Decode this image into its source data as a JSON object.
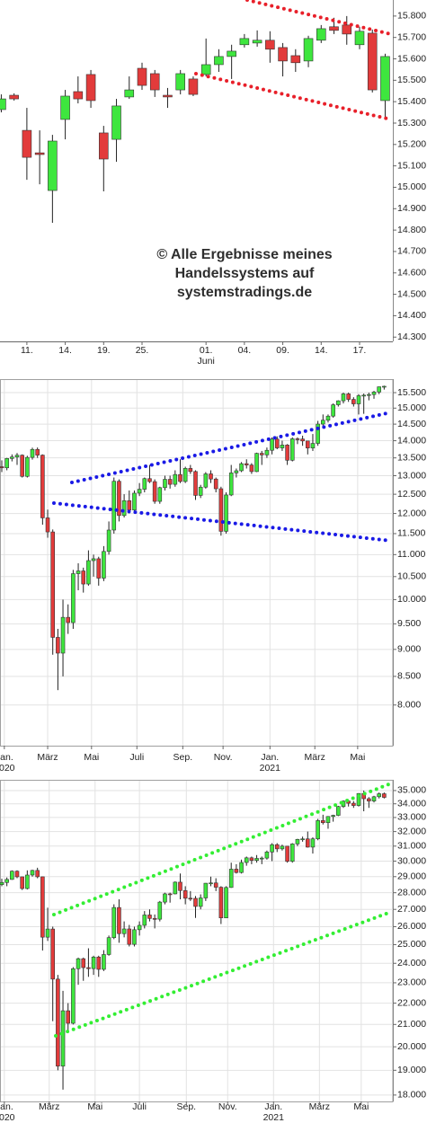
{
  "chart_data": [
    {
      "type": "candlestick",
      "log": false,
      "grid": false,
      "up_color": "#3ee63e",
      "down_color": "#e23b3b",
      "watermark": [
        "© Alle Ergebnisse meines",
        "Handelssystems auf",
        "systemstradings.de"
      ],
      "xlim": [
        -0.1,
        30.6
      ],
      "ylim": [
        14280,
        15875
      ],
      "xticks": [
        {
          "value": 2,
          "label": "11."
        },
        {
          "value": 5,
          "label": "14."
        },
        {
          "value": 8,
          "label": "19."
        },
        {
          "value": 11,
          "label": "25."
        },
        {
          "value": 16,
          "label": "01.",
          "sublabel": "Juni"
        },
        {
          "value": 19,
          "label": "04."
        },
        {
          "value": 22,
          "label": "09."
        },
        {
          "value": 25,
          "label": "14."
        },
        {
          "value": 28,
          "label": "17."
        }
      ],
      "yticks": [
        {
          "value": 14300,
          "label": "14.300"
        },
        {
          "value": 14400,
          "label": "14.400"
        },
        {
          "value": 14500,
          "label": "14.500"
        },
        {
          "value": 14600,
          "label": "14.600"
        },
        {
          "value": 14700,
          "label": "14.700"
        },
        {
          "value": 14800,
          "label": "14.800"
        },
        {
          "value": 14900,
          "label": "14.900"
        },
        {
          "value": 15000,
          "label": "15.000"
        },
        {
          "value": 15100,
          "label": "15.100"
        },
        {
          "value": 15200,
          "label": "15.200"
        },
        {
          "value": 15300,
          "label": "15.300"
        },
        {
          "value": 15400,
          "label": "15.400"
        },
        {
          "value": 15500,
          "label": "15.500"
        },
        {
          "value": 15600,
          "label": "15.600"
        },
        {
          "value": 15700,
          "label": "15.700"
        },
        {
          "value": 15800,
          "label": "15.800"
        }
      ],
      "open": [
        15363,
        15430,
        15266,
        15161,
        14985,
        15317,
        15447,
        15527,
        15254,
        15224,
        15422,
        15556,
        15531,
        15430,
        15455,
        15506,
        15527,
        15573,
        15611,
        15666,
        15674,
        15687,
        15653,
        15615,
        15590,
        15687,
        15750,
        15758,
        15666,
        15720,
        15405
      ],
      "high": [
        15434,
        15439,
        15371,
        15266,
        15245,
        15455,
        15518,
        15548,
        15287,
        15413,
        15518,
        15582,
        15548,
        15464,
        15548,
        15518,
        15695,
        15645,
        15666,
        15716,
        15733,
        15729,
        15674,
        15645,
        15708,
        15758,
        15792,
        15800,
        15750,
        15737,
        15624
      ],
      "low": [
        15350,
        15405,
        15035,
        15014,
        14834,
        15224,
        15392,
        15371,
        14981,
        15119,
        15413,
        15455,
        15422,
        15371,
        15434,
        15426,
        15518,
        15539,
        15506,
        15653,
        15657,
        15582,
        15518,
        15539,
        15561,
        15674,
        15716,
        15666,
        15645,
        15443,
        15329
      ],
      "close": [
        15413,
        15413,
        15140,
        15153,
        15216,
        15426,
        15413,
        15405,
        15132,
        15380,
        15455,
        15476,
        15455,
        15422,
        15531,
        15434,
        15573,
        15611,
        15636,
        15695,
        15687,
        15645,
        15590,
        15582,
        15695,
        15741,
        15733,
        15716,
        15729,
        15455,
        15611
      ]
    },
    {
      "type": "candlestick",
      "log": true,
      "grid": true,
      "up_color": "#3ee63e",
      "down_color": "#e23b3b",
      "xlim": [
        -0.35,
        76.7
      ],
      "ylim": [
        7340,
        15950
      ],
      "xticks": [
        {
          "value": 0.5,
          "label": "Jan.",
          "sublabel": "2020"
        },
        {
          "value": 9,
          "label": "März"
        },
        {
          "value": 17.6,
          "label": "Mai"
        },
        {
          "value": 26.5,
          "label": "Juli"
        },
        {
          "value": 35.5,
          "label": "Sep."
        },
        {
          "value": 43.4,
          "label": "Nov."
        },
        {
          "value": 52.6,
          "label": "Jan.",
          "sublabel": "2021"
        },
        {
          "value": 61.4,
          "label": "März"
        },
        {
          "value": 69.8,
          "label": "Mai"
        }
      ],
      "yticks": [
        {
          "value": 8000,
          "label": "8.000"
        },
        {
          "value": 8500,
          "label": "8.500"
        },
        {
          "value": 9000,
          "label": "9.000"
        },
        {
          "value": 9500,
          "label": "9.500"
        },
        {
          "value": 10000,
          "label": "10.000"
        },
        {
          "value": 10500,
          "label": "10.500"
        },
        {
          "value": 11000,
          "label": "11.000"
        },
        {
          "value": 11500,
          "label": "11.500"
        },
        {
          "value": 12000,
          "label": "12.000"
        },
        {
          "value": 12500,
          "label": "12.500"
        },
        {
          "value": 13000,
          "label": "13.000"
        },
        {
          "value": 13500,
          "label": "13.500"
        },
        {
          "value": 14000,
          "label": "14.000"
        },
        {
          "value": 14500,
          "label": "14.500"
        },
        {
          "value": 15000,
          "label": "15.000"
        },
        {
          "value": 15500,
          "label": "15.500"
        }
      ],
      "open": [
        13250,
        13219,
        13483,
        13526,
        13577,
        12982,
        13514,
        13744,
        13579,
        11890,
        11541,
        9232,
        8929,
        9632,
        9525,
        10565,
        10626,
        10336,
        10861,
        10904,
        10465,
        11074,
        11587,
        12848,
        11949,
        12331,
        12089,
        12528,
        12633,
        12920,
        12838,
        12313,
        12675,
        12901,
        12765,
        13033,
        12842,
        13203,
        13116,
        12469,
        12689,
        13051,
        12909,
        12646,
        11556,
        12480,
        13077,
        13137,
        13336,
        13298,
        13114,
        13631,
        13587,
        13719,
        14049,
        13788,
        13873,
        13433,
        14057,
        14050,
        13993,
        13786,
        13920,
        14502,
        14621,
        14748,
        15107,
        15234,
        15460,
        15280,
        15136,
        15400,
        15417,
        15438,
        15520,
        15693
      ],
      "high": [
        13430,
        13500,
        13600,
        13640,
        13600,
        13560,
        13795,
        13800,
        13600,
        12100,
        11600,
        9400,
        10000,
        9900,
        10650,
        10800,
        10700,
        11100,
        11000,
        10950,
        11200,
        11800,
        12950,
        12900,
        12500,
        12600,
        12600,
        12800,
        12950,
        13300,
        12900,
        12700,
        13000,
        13000,
        13150,
        13460,
        13250,
        13300,
        13150,
        12750,
        13100,
        13150,
        12950,
        12700,
        12550,
        13300,
        13200,
        13380,
        13460,
        13350,
        13650,
        13700,
        13800,
        14100,
        14130,
        14000,
        13900,
        14100,
        14100,
        14150,
        14000,
        14200,
        14600,
        14800,
        14800,
        15150,
        15250,
        15500,
        15500,
        15350,
        15450,
        15470,
        15500,
        15560,
        15700,
        15730
      ],
      "low": [
        13100,
        13150,
        13400,
        13300,
        12950,
        12950,
        13450,
        13500,
        11720,
        11400,
        8900,
        8256,
        8500,
        9300,
        9400,
        10200,
        10150,
        10300,
        10500,
        10300,
        10400,
        11000,
        11500,
        11800,
        11900,
        12000,
        12000,
        12450,
        12550,
        12800,
        12250,
        12250,
        12600,
        12650,
        12700,
        12800,
        12800,
        13050,
        12350,
        12400,
        12650,
        12800,
        12550,
        11450,
        11500,
        12450,
        12950,
        13100,
        13200,
        13050,
        13100,
        13300,
        13500,
        13600,
        13750,
        13700,
        13300,
        13400,
        13900,
        13850,
        13600,
        13700,
        13850,
        14450,
        14550,
        14700,
        15050,
        15150,
        15200,
        15050,
        14800,
        14820,
        15250,
        15300,
        15450,
        15600
      ],
      "close": [
        13219,
        13483,
        13526,
        13577,
        12982,
        13514,
        13744,
        13579,
        11890,
        11541,
        9232,
        8929,
        9632,
        9525,
        10565,
        10626,
        10336,
        10861,
        10904,
        10465,
        11074,
        11587,
        12848,
        11949,
        12331,
        12089,
        12528,
        12633,
        12920,
        12838,
        12313,
        12675,
        12901,
        12765,
        13033,
        12842,
        13203,
        13116,
        12469,
        12689,
        13051,
        12909,
        12646,
        11556,
        12480,
        13077,
        13137,
        13336,
        13298,
        13114,
        13631,
        13587,
        13719,
        14049,
        13788,
        13873,
        13433,
        14057,
        14050,
        13993,
        13786,
        13920,
        14502,
        14621,
        14748,
        15107,
        15234,
        15460,
        15280,
        15136,
        15400,
        15417,
        15438,
        15520,
        15693,
        15710
      ]
    },
    {
      "type": "candlestick",
      "log": true,
      "grid": true,
      "up_color": "#3ee63e",
      "down_color": "#e23b3b",
      "xlim": [
        -0.35,
        76.7
      ],
      "ylim": [
        17750,
        35830
      ],
      "xticks": [
        {
          "value": 0.5,
          "label": "Jan.",
          "sublabel": "2020"
        },
        {
          "value": 9.3,
          "label": "März"
        },
        {
          "value": 18.3,
          "label": "Mai"
        },
        {
          "value": 27,
          "label": "Juli"
        },
        {
          "value": 36.2,
          "label": "Sep."
        },
        {
          "value": 44.3,
          "label": "Nov."
        },
        {
          "value": 53.3,
          "label": "Jan.",
          "sublabel": "2021"
        },
        {
          "value": 62.3,
          "label": "März"
        },
        {
          "value": 70.5,
          "label": "Mai"
        }
      ],
      "yticks": [
        {
          "value": 18000,
          "label": "18.000"
        },
        {
          "value": 19000,
          "label": "19.000"
        },
        {
          "value": 20000,
          "label": "20.000"
        },
        {
          "value": 21000,
          "label": "21.000"
        },
        {
          "value": 22000,
          "label": "22.000"
        },
        {
          "value": 23000,
          "label": "23.000"
        },
        {
          "value": 24000,
          "label": "24.000"
        },
        {
          "value": 25000,
          "label": "25.000"
        },
        {
          "value": 26000,
          "label": "26.000"
        },
        {
          "value": 27000,
          "label": "27.000"
        },
        {
          "value": 28000,
          "label": "28.000"
        },
        {
          "value": 29000,
          "label": "29.000"
        },
        {
          "value": 30000,
          "label": "30.000"
        },
        {
          "value": 31000,
          "label": "31.000"
        },
        {
          "value": 32000,
          "label": "32.000"
        },
        {
          "value": 33000,
          "label": "33.000"
        },
        {
          "value": 34000,
          "label": "34.000"
        },
        {
          "value": 35000,
          "label": "35.000"
        }
      ],
      "open": [
        28500,
        28634,
        28824,
        29348,
        28990,
        28256,
        29103,
        29398,
        28992,
        25409,
        25865,
        23186,
        19174,
        21637,
        21053,
        23719,
        24242,
        23775,
        23724,
        24331,
        23685,
        24465,
        25383,
        27111,
        25606,
        25871,
        25016,
        25827,
        26075,
        26672,
        26470,
        26428,
        27433,
        27931,
        27930,
        28654,
        28133,
        27666,
        27657,
        27174,
        27683,
        28587,
        28606,
        28336,
        26502,
        28323,
        29480,
        29263,
        29910,
        30218,
        30046,
        30179,
        30200,
        30606,
        31098,
        30814,
        30997,
        29983,
        31148,
        31458,
        31494,
        30932,
        31496,
        32779,
        32628,
        33073,
        33153,
        33800,
        34200,
        34043,
        33875,
        34778,
        34382,
        34208,
        34529,
        34756
      ],
      "high": [
        28870,
        28950,
        29400,
        29400,
        29000,
        29400,
        29440,
        29570,
        29000,
        27100,
        26000,
        23400,
        22600,
        22000,
        23800,
        24300,
        24300,
        24800,
        24400,
        24400,
        24700,
        25500,
        27300,
        27600,
        26300,
        26100,
        26000,
        26300,
        26900,
        27000,
        26700,
        27500,
        28000,
        28000,
        28700,
        29200,
        28400,
        28100,
        27800,
        27900,
        28600,
        29000,
        28900,
        28400,
        28400,
        29900,
        29800,
        30100,
        30300,
        30300,
        30400,
        30300,
        30700,
        31200,
        31200,
        31100,
        31000,
        31200,
        31500,
        31650,
        32000,
        31600,
        32900,
        33200,
        33100,
        33200,
        33850,
        34260,
        34300,
        34200,
        34800,
        35000,
        34500,
        34600,
        34850,
        34850
      ],
      "low": [
        28400,
        28400,
        28800,
        28900,
        28170,
        28200,
        29000,
        28900,
        24680,
        25200,
        21150,
        19000,
        18214,
        20700,
        21000,
        22900,
        23100,
        23300,
        23400,
        23300,
        23600,
        24400,
        25300,
        25100,
        25400,
        24900,
        24900,
        25500,
        25900,
        26300,
        25900,
        26300,
        27300,
        27400,
        27900,
        27600,
        27300,
        27500,
        26500,
        27000,
        27500,
        28400,
        28100,
        26150,
        26500,
        28300,
        29200,
        29200,
        29700,
        29800,
        29900,
        29800,
        30100,
        30000,
        30600,
        30700,
        29900,
        29900,
        31000,
        31300,
        30900,
        30500,
        31400,
        32500,
        32200,
        32700,
        33100,
        33700,
        33800,
        33700,
        33800,
        33450,
        33700,
        34100,
        34400,
        34400
      ],
      "close": [
        28634,
        28824,
        29348,
        28990,
        28256,
        29103,
        29398,
        28992,
        25409,
        25865,
        23186,
        19174,
        21637,
        21053,
        23719,
        24242,
        23775,
        23724,
        24331,
        23685,
        24465,
        25383,
        27111,
        25606,
        25871,
        25016,
        25827,
        26075,
        26672,
        26470,
        26428,
        27433,
        27931,
        27930,
        28654,
        28133,
        27666,
        27657,
        27174,
        27683,
        28587,
        28606,
        28336,
        26502,
        28323,
        29480,
        29263,
        29910,
        30218,
        30046,
        30179,
        30200,
        30606,
        31098,
        30814,
        30997,
        29983,
        31148,
        31458,
        31494,
        30932,
        31496,
        32779,
        32628,
        33073,
        33153,
        33800,
        34200,
        34043,
        33875,
        34778,
        34382,
        34208,
        34529,
        34756,
        34480
      ]
    }
  ]
}
